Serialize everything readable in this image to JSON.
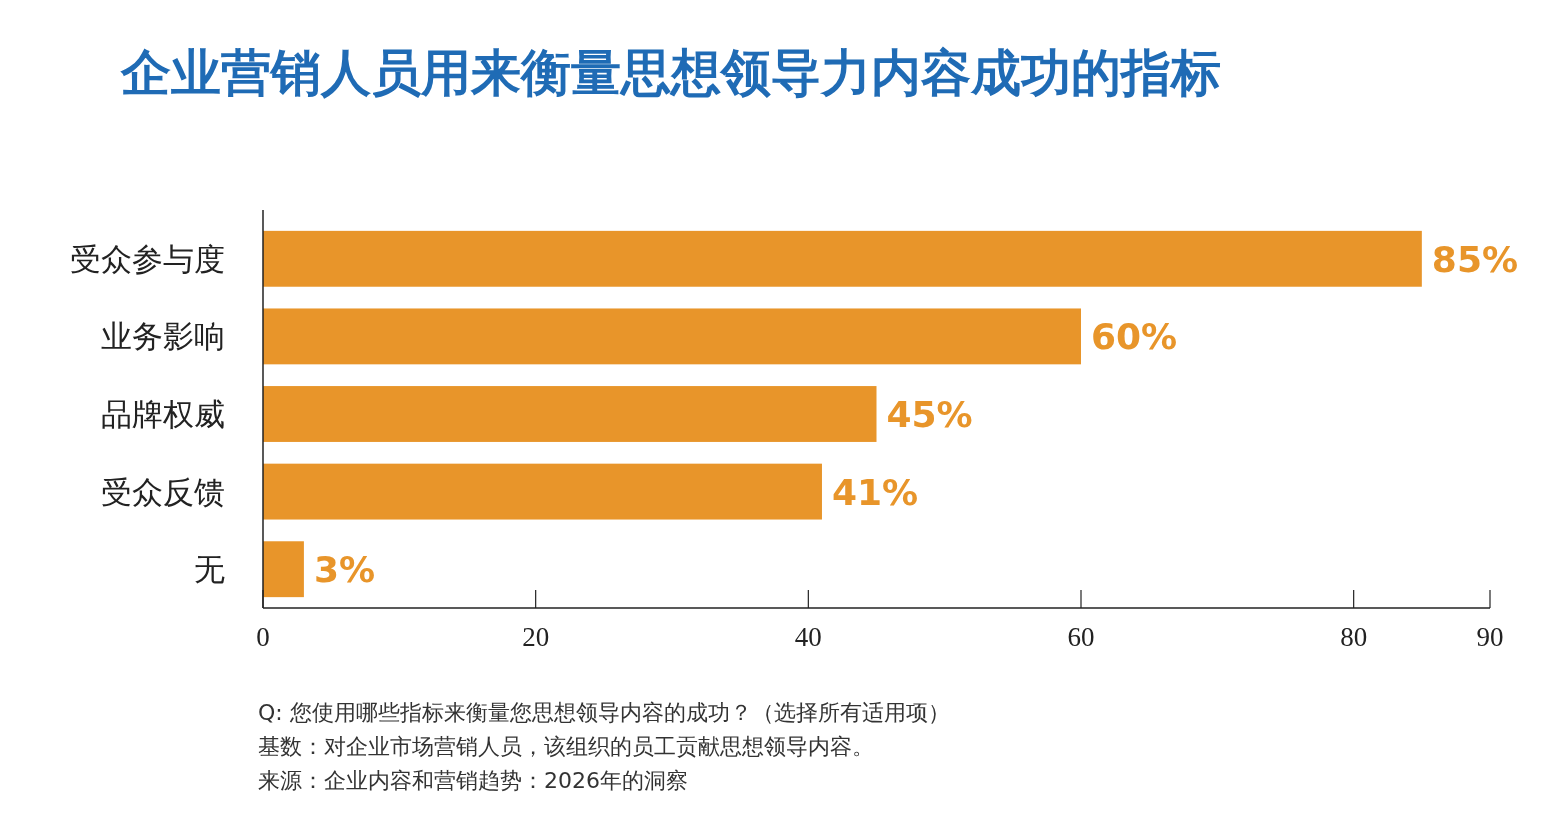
{
  "chart_data": {
    "type": "bar",
    "orientation": "horizontal",
    "title": "企业营销人员用来衡量思想领导力内容成功的指标",
    "categories": [
      "受众参与度",
      "业务影响",
      "品牌权威",
      "受众反馈",
      "无"
    ],
    "values": [
      85,
      60,
      45,
      41,
      3
    ],
    "value_labels": [
      "85%",
      "60%",
      "45%",
      "41%",
      "3%"
    ],
    "color": "#e8952a",
    "xlim": [
      0,
      90
    ],
    "xticks": [
      0,
      20,
      40,
      60,
      80,
      90
    ],
    "annotations": [
      "Q: 您使用哪些指标来衡量您思想领导内容的成功？（选择所有适用项）",
      "基数：对企业市场营销人员，该组织的员工贡献思想领导内容。",
      "来源：企业内容和营销趋势：2026年的洞察"
    ]
  }
}
